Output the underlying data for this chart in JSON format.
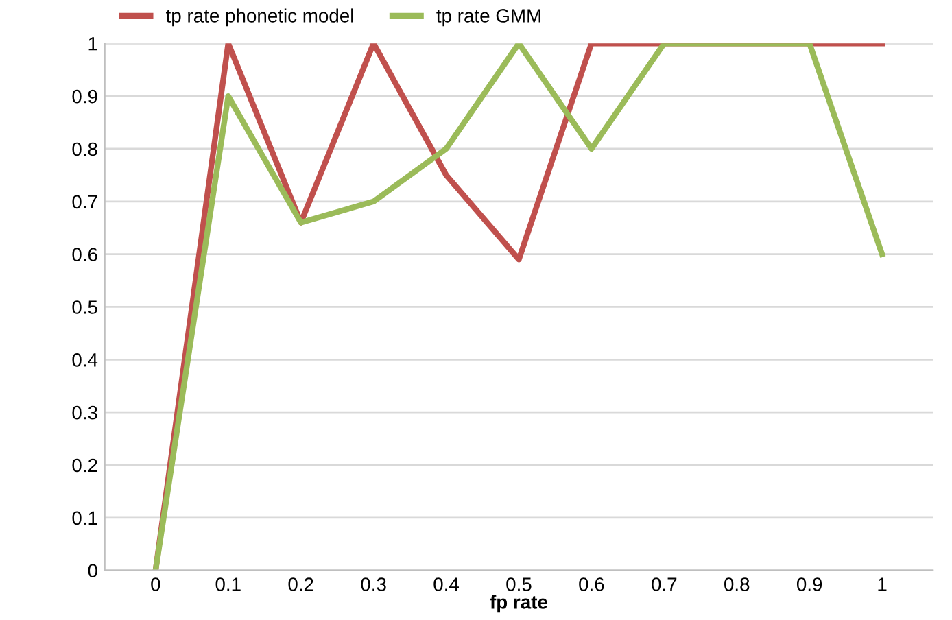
{
  "chart_data": {
    "type": "line",
    "xlabel": "fp rate",
    "categories": [
      "0",
      "0.1",
      "0.2",
      "0.3",
      "0.4",
      "0.5",
      "0.6",
      "0.7",
      "0.8",
      "0.9",
      "1"
    ],
    "series": [
      {
        "name": "tp rate phonetic model",
        "color": "#c0504d",
        "values": [
          0,
          1,
          0.66,
          1,
          0.75,
          0.59,
          1,
          1,
          1,
          1,
          1
        ]
      },
      {
        "name": "tp rate GMM",
        "color": "#9bbb59",
        "values": [
          0,
          0.9,
          0.66,
          0.7,
          0.8,
          1,
          0.8,
          1,
          1,
          1,
          0.6
        ]
      }
    ],
    "ylim": [
      0,
      1
    ],
    "yticks": [
      0,
      0.1,
      0.2,
      0.3,
      0.4,
      0.5,
      0.6,
      0.7,
      0.8,
      0.9,
      1
    ],
    "grid": "y",
    "legend": "top left",
    "marker": "none",
    "line_style": "solid"
  }
}
